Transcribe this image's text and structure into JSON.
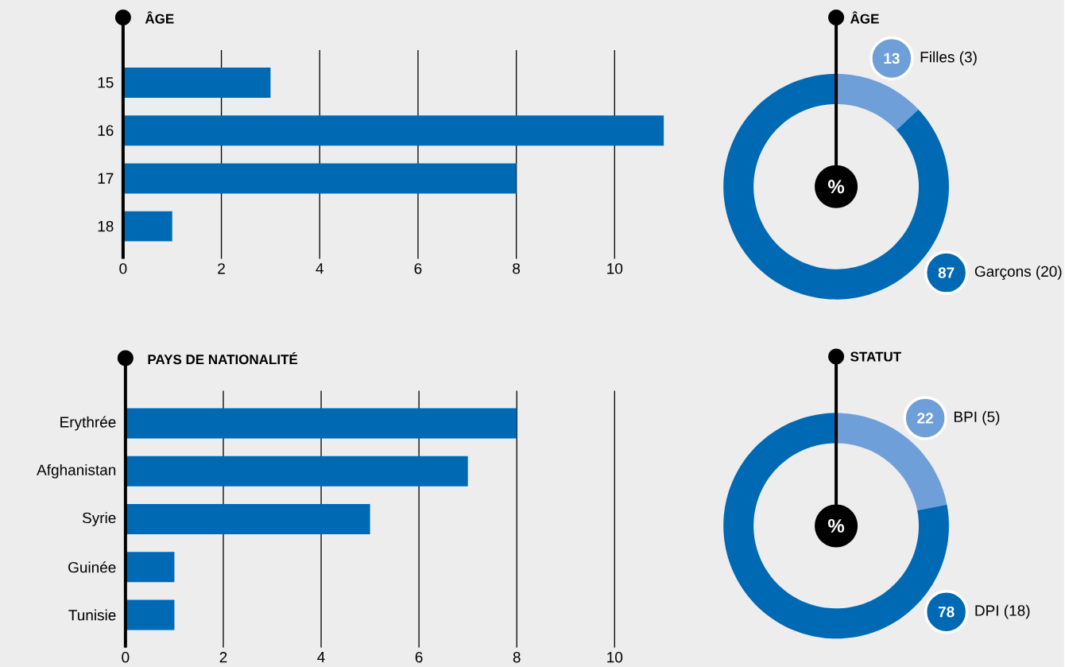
{
  "chart_data": [
    {
      "type": "bar",
      "orientation": "horizontal",
      "title": "ÂGE",
      "categories": [
        "15",
        "16",
        "17",
        "18"
      ],
      "values": [
        3,
        11,
        8,
        1
      ],
      "color": "#0069b4",
      "xlim": [
        0,
        11
      ],
      "xticks": [
        0,
        2,
        4,
        6,
        8,
        10
      ],
      "grid": "x"
    },
    {
      "type": "donut",
      "title": "ÂGE",
      "categories": [
        "Filles (3)",
        "Garçons (20)"
      ],
      "values": [
        13,
        87
      ],
      "colors": [
        "#6f9fd8",
        "#0069b4"
      ],
      "data_labels": true,
      "annotations": [
        "%"
      ]
    },
    {
      "type": "bar",
      "orientation": "horizontal",
      "title": "PAYS DE NATIONALITÉ",
      "categories": [
        "Erythrée",
        "Afghanistan",
        "Syrie",
        "Guinée",
        "Tunisie"
      ],
      "values": [
        8,
        7,
        5,
        1,
        1
      ],
      "color": "#0069b4",
      "xlim": [
        0,
        10
      ],
      "xticks": [
        0,
        2,
        4,
        6,
        8,
        10
      ],
      "grid": "x"
    },
    {
      "type": "donut",
      "title": "STATUT",
      "categories": [
        "BPI (5)",
        "DPI (18)"
      ],
      "values": [
        22,
        78
      ],
      "colors": [
        "#6f9fd8",
        "#0069b4"
      ],
      "data_labels": true,
      "annotations": [
        "%"
      ]
    }
  ]
}
